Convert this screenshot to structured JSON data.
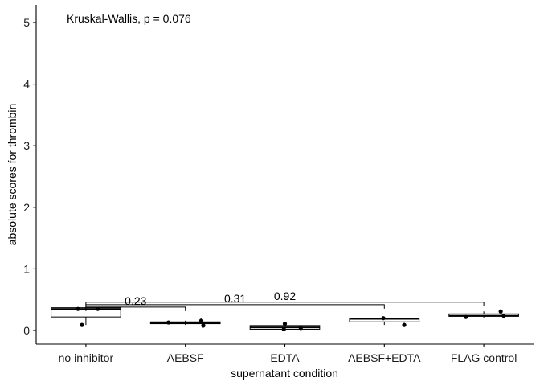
{
  "chart_data": {
    "type": "box",
    "title": "",
    "xlabel": "supernatant condition",
    "ylabel": "absolute scores for thrombin",
    "ylim": [
      -0.25,
      5.25
    ],
    "yticks": [
      0,
      1,
      2,
      3,
      4,
      5
    ],
    "grid": false,
    "annotation": "Kruskal-Wallis, p = 0.076",
    "categories": [
      "no inhibitor",
      "AEBSF",
      "EDTA",
      "AEBSF+EDTA",
      "FLAG control"
    ],
    "boxes": [
      {
        "category": "no inhibitor",
        "min": 0.09,
        "q1": 0.22,
        "median": 0.35,
        "q3": 0.37,
        "max": 0.37
      },
      {
        "category": "AEBSF",
        "min": 0.09,
        "q1": 0.11,
        "median": 0.12,
        "q3": 0.14,
        "max": 0.16
      },
      {
        "category": "EDTA",
        "min": 0.01,
        "q1": 0.02,
        "median": 0.05,
        "q3": 0.08,
        "max": 0.11
      },
      {
        "category": "AEBSF+EDTA",
        "min": 0.09,
        "q1": 0.14,
        "median": 0.19,
        "q3": 0.2,
        "max": 0.2
      },
      {
        "category": "FLAG control",
        "min": 0.21,
        "q1": 0.23,
        "median": 0.24,
        "q3": 0.27,
        "max": 0.31
      }
    ],
    "points": [
      {
        "category": "no inhibitor",
        "jitter": -0.08,
        "y": 0.35
      },
      {
        "category": "no inhibitor",
        "jitter": 0.12,
        "y": 0.35
      },
      {
        "category": "no inhibitor",
        "jitter": -0.04,
        "y": 0.09
      },
      {
        "category": "AEBSF",
        "jitter": -0.17,
        "y": 0.13
      },
      {
        "category": "AEBSF",
        "jitter": 0.16,
        "y": 0.16
      },
      {
        "category": "AEBSF",
        "jitter": 0.18,
        "y": 0.08
      },
      {
        "category": "EDTA",
        "jitter": 0.0,
        "y": 0.11
      },
      {
        "category": "EDTA",
        "jitter": -0.01,
        "y": 0.02
      },
      {
        "category": "EDTA",
        "jitter": 0.16,
        "y": 0.04
      },
      {
        "category": "AEBSF+EDTA",
        "jitter": -0.01,
        "y": 0.2
      },
      {
        "category": "AEBSF+EDTA",
        "jitter": 0.2,
        "y": 0.09
      },
      {
        "category": "FLAG control",
        "jitter": 0.17,
        "y": 0.31
      },
      {
        "category": "FLAG control",
        "jitter": -0.18,
        "y": 0.22
      },
      {
        "category": "FLAG control",
        "jitter": 0.2,
        "y": 0.24
      }
    ],
    "comparisons": [
      {
        "from": "no inhibitor",
        "to": "AEBSF",
        "label": "0.23",
        "y": 0.38
      },
      {
        "from": "no inhibitor",
        "to": "AEBSF+EDTA",
        "label": "0.31",
        "y": 0.42
      },
      {
        "from": "no inhibitor",
        "to": "FLAG control",
        "label": "0.92",
        "y": 0.46
      }
    ]
  }
}
